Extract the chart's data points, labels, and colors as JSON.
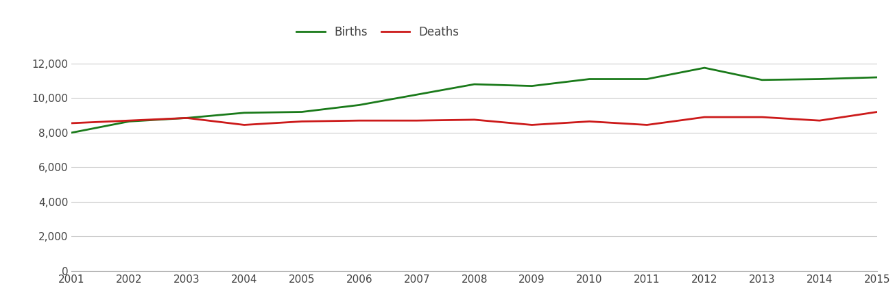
{
  "years": [
    2001,
    2002,
    2003,
    2004,
    2005,
    2006,
    2007,
    2008,
    2009,
    2010,
    2011,
    2012,
    2013,
    2014,
    2015
  ],
  "births": [
    8000,
    8650,
    8850,
    9150,
    9200,
    9600,
    10200,
    10800,
    10700,
    11100,
    11100,
    11750,
    11050,
    11100,
    11200
  ],
  "deaths": [
    8550,
    8700,
    8850,
    8450,
    8650,
    8700,
    8700,
    8750,
    8450,
    8650,
    8450,
    8900,
    8900,
    8700,
    9200
  ],
  "births_color": "#1a7a1a",
  "deaths_color": "#cc1a1a",
  "line_width": 2.0,
  "ylim": [
    0,
    13000
  ],
  "ytick_step": 2000,
  "background_color": "#ffffff",
  "grid_color": "#cccccc",
  "legend_births": "Births",
  "legend_deaths": "Deaths",
  "legend_text_color": "#444444",
  "tick_label_color": "#444444"
}
